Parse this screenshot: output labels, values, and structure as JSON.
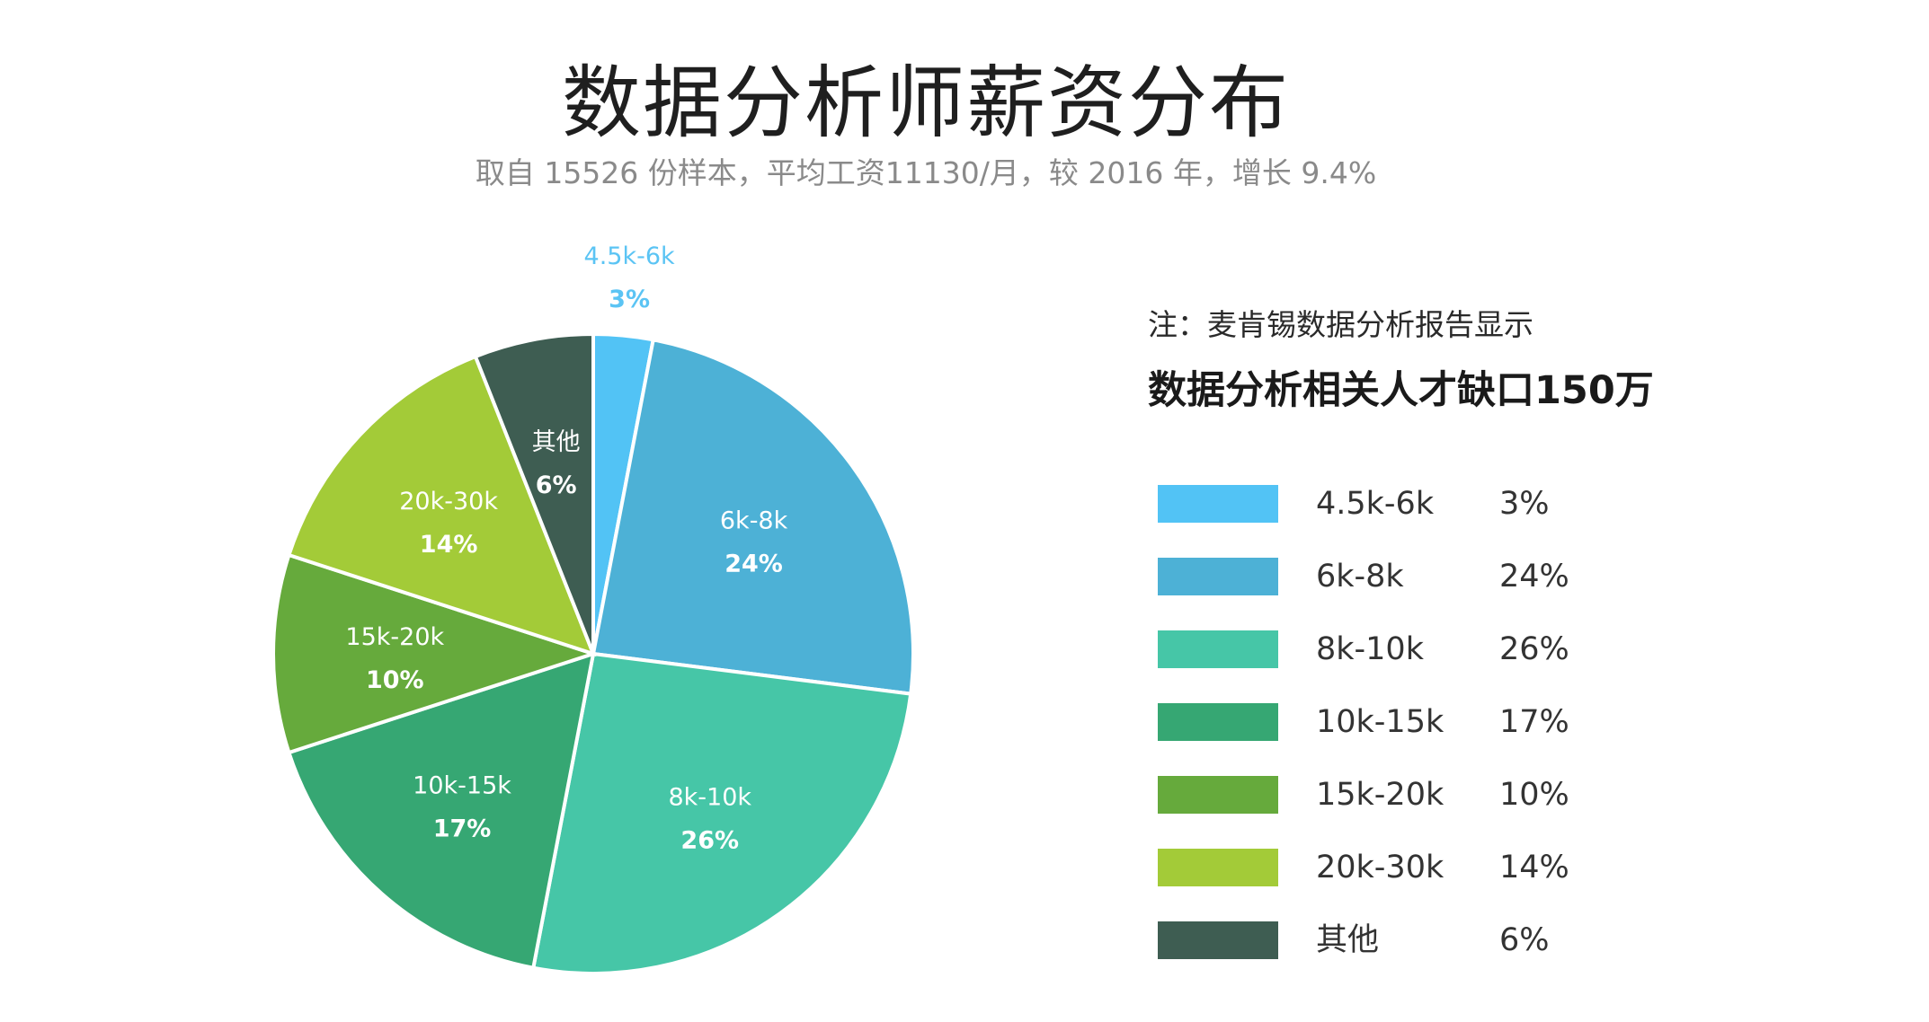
{
  "chart_data": {
    "type": "pie",
    "title": "数据分析师薪资分布",
    "subtitle": "取自 15526 份样本，平均工资11130/月，较 2016 年，增长 9.4%",
    "slices": [
      {
        "label": "4.5k-6k",
        "value": 3,
        "pct_label": "3%",
        "color": "#52c3f5"
      },
      {
        "label": "6k-8k",
        "value": 24,
        "pct_label": "24%",
        "color": "#4db1d6"
      },
      {
        "label": "8k-10k",
        "value": 26,
        "pct_label": "26%",
        "color": "#46c6a7"
      },
      {
        "label": "10k-15k",
        "value": 17,
        "pct_label": "17%",
        "color": "#36a773"
      },
      {
        "label": "15k-20k",
        "value": 10,
        "pct_label": "10%",
        "color": "#66aa3c"
      },
      {
        "label": "20k-30k",
        "value": 14,
        "pct_label": "14%",
        "color": "#a3cb38"
      },
      {
        "label": "其他",
        "value": 6,
        "pct_label": "6%",
        "color": "#3e5d52"
      }
    ],
    "legend_placement": "right"
  },
  "note": {
    "line1": "注：麦肯锡数据分析报告显示",
    "line2": "数据分析相关人才缺口150万"
  }
}
